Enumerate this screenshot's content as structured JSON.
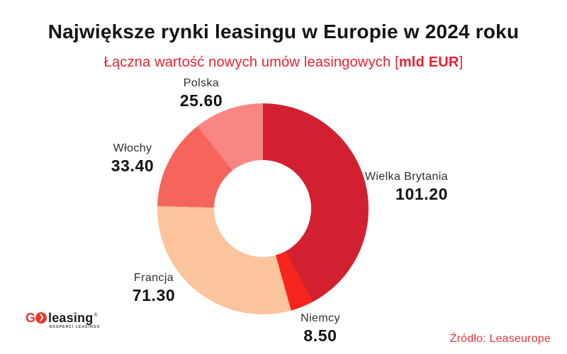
{
  "page": {
    "title": "Największe rynki leasingu w Europie w 2024 roku",
    "subtitle_prefix": "Łączna wartość nowych umów leasingowych ",
    "subtitle_bracket_open": "[",
    "subtitle_em": "mld EUR",
    "subtitle_bracket_close": "]",
    "source": "Źródło: Leaseurope"
  },
  "logo": {
    "g": "G",
    "chevron": "❯",
    "name": "leasing",
    "registered": "®",
    "tagline": "EKSPERCI LEASINGU",
    "accent_color": "#e63a2a"
  },
  "chart_data": {
    "type": "pie",
    "variant": "donut",
    "title": "Największe rynki leasingu w Europie w 2024 roku",
    "subtitle": "Łączna wartość nowych umów leasingowych [mld EUR]",
    "unit": "mld EUR",
    "total": 240.0,
    "start_angle_deg": 0,
    "direction": "clockwise",
    "inner_radius_ratio": 0.46,
    "legend_position": "labels-around-donut",
    "segments": [
      {
        "label": "Wielka Brytania",
        "value": 101.2,
        "display": "101.20",
        "color": "#d22030"
      },
      {
        "label": "Niemcy",
        "value": 8.5,
        "display": "8.50",
        "color": "#f6261d"
      },
      {
        "label": "Francja",
        "value": 71.3,
        "display": "71.30",
        "color": "#fcc49d"
      },
      {
        "label": "Włochy",
        "value": 33.4,
        "display": "33.40",
        "color": "#f6655c"
      },
      {
        "label": "Polska",
        "value": 25.6,
        "display": "25.60",
        "color": "#fa8683"
      }
    ],
    "source": "Źródło: Leaseurope"
  }
}
